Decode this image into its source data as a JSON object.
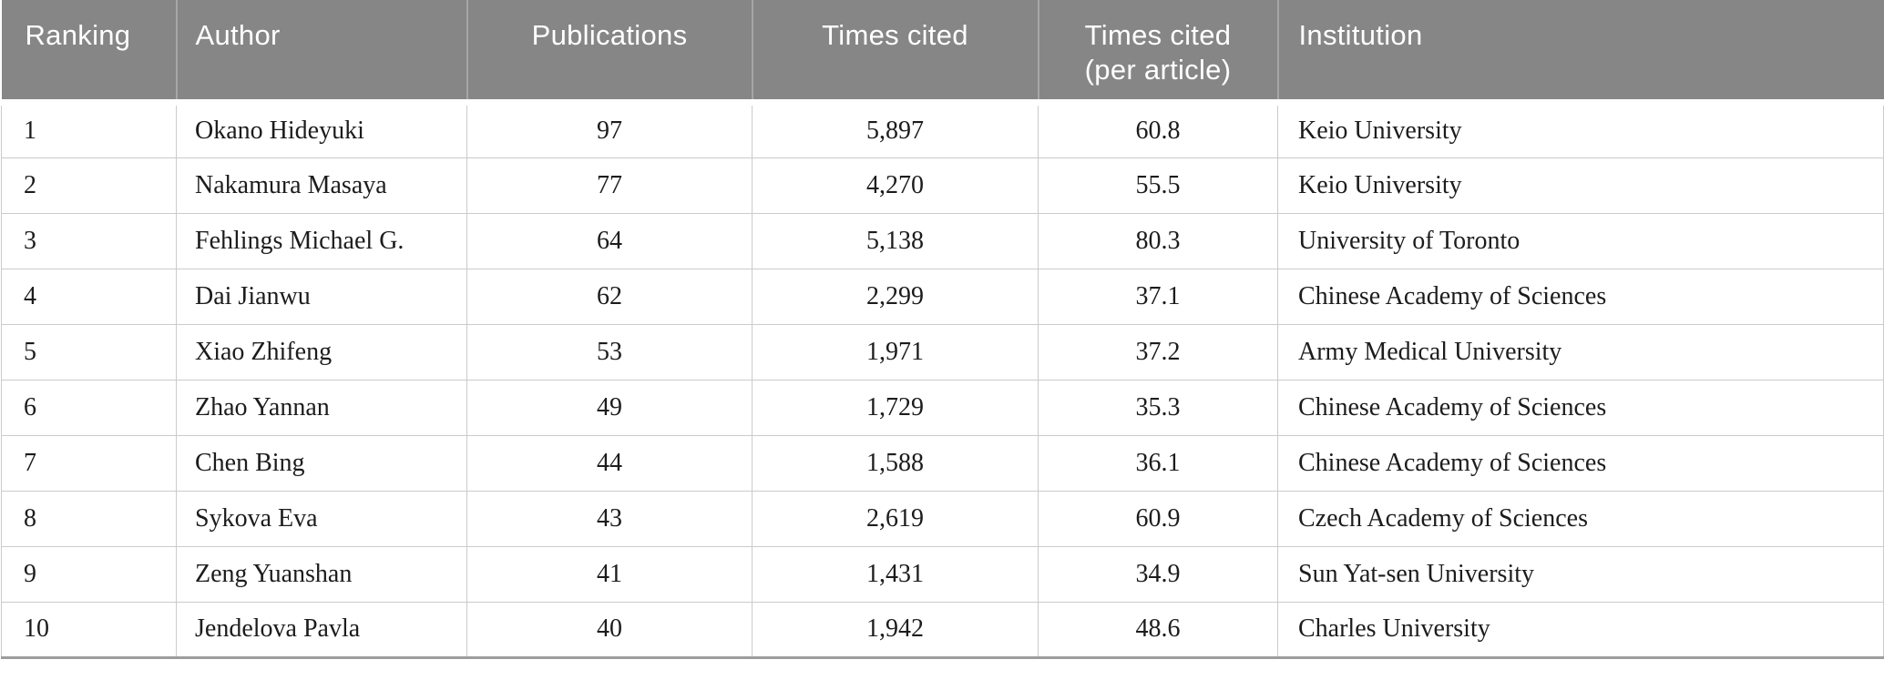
{
  "colors": {
    "header_background": "#868686",
    "header_text": "#ffffff",
    "header_divider": "#a6a6a6",
    "body_text": "#1c1c1c",
    "grid_line": "#cbcbcb",
    "bottom_rule": "#9d9d9d",
    "page_background": "#ffffff"
  },
  "table": {
    "header": {
      "ranking": "Ranking",
      "author": "Author",
      "publications": "Publications",
      "times_cited": "Times cited",
      "times_cited_per_article_line1": "Times cited",
      "times_cited_per_article_line2": "(per article)",
      "institution": "Institution"
    },
    "rows": [
      {
        "ranking": "1",
        "author": "Okano Hideyuki",
        "publications": "97",
        "times_cited": "5,897",
        "times_cited_per_article": "60.8",
        "institution": "Keio University"
      },
      {
        "ranking": "2",
        "author": "Nakamura Masaya",
        "publications": "77",
        "times_cited": "4,270",
        "times_cited_per_article": "55.5",
        "institution": "Keio University"
      },
      {
        "ranking": "3",
        "author": "Fehlings Michael G.",
        "publications": "64",
        "times_cited": "5,138",
        "times_cited_per_article": "80.3",
        "institution": "University of Toronto"
      },
      {
        "ranking": "4",
        "author": "Dai Jianwu",
        "publications": "62",
        "times_cited": "2,299",
        "times_cited_per_article": "37.1",
        "institution": "Chinese Academy of Sciences"
      },
      {
        "ranking": "5",
        "author": "Xiao Zhifeng",
        "publications": "53",
        "times_cited": "1,971",
        "times_cited_per_article": "37.2",
        "institution": "Army Medical University"
      },
      {
        "ranking": "6",
        "author": "Zhao Yannan",
        "publications": "49",
        "times_cited": "1,729",
        "times_cited_per_article": "35.3",
        "institution": "Chinese Academy of Sciences"
      },
      {
        "ranking": "7",
        "author": "Chen Bing",
        "publications": "44",
        "times_cited": "1,588",
        "times_cited_per_article": "36.1",
        "institution": "Chinese Academy of Sciences"
      },
      {
        "ranking": "8",
        "author": "Sykova Eva",
        "publications": "43",
        "times_cited": "2,619",
        "times_cited_per_article": "60.9",
        "institution": "Czech Academy of Sciences"
      },
      {
        "ranking": "9",
        "author": "Zeng Yuanshan",
        "publications": "41",
        "times_cited": "1,431",
        "times_cited_per_article": "34.9",
        "institution": "Sun Yat-sen University"
      },
      {
        "ranking": "10",
        "author": "Jendelova Pavla",
        "publications": "40",
        "times_cited": "1,942",
        "times_cited_per_article": "48.6",
        "institution": "Charles University"
      }
    ]
  }
}
